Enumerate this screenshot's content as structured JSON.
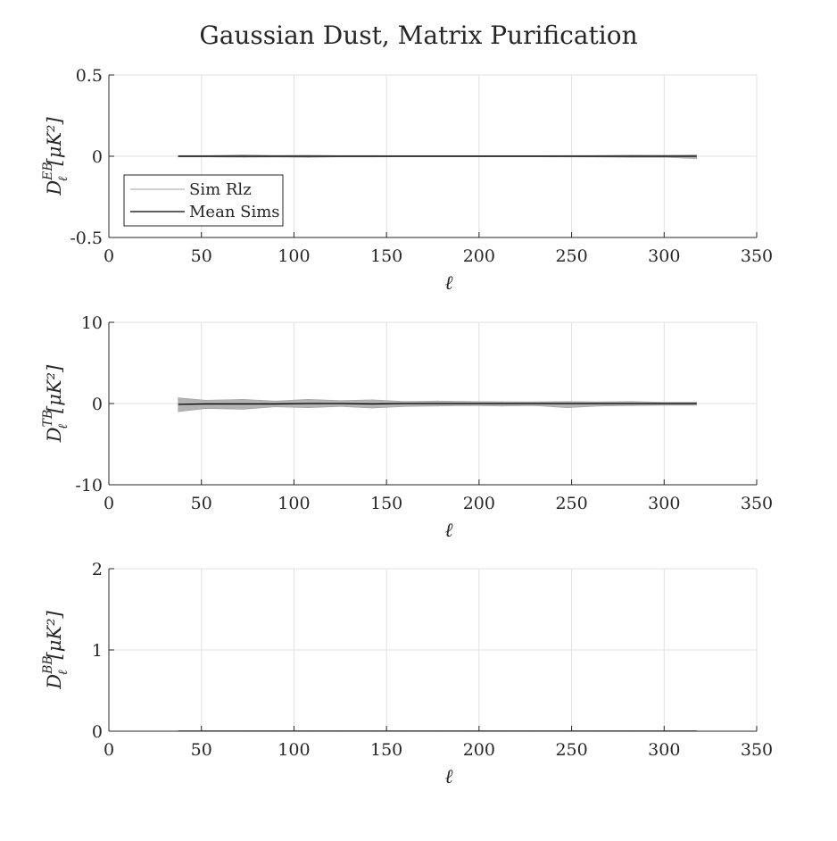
{
  "title": "Gaussian Dust, Matrix Purification",
  "legend": {
    "entries": [
      {
        "label": "Sim Rlz",
        "color": "#b3b3b3"
      },
      {
        "label": "Mean Sims",
        "color": "#000000"
      }
    ]
  },
  "colors": {
    "band_fill": "#b3b3b3",
    "sim_line": "#a6a6a6",
    "mean_line": "#000000",
    "grid": "#e1e1e1",
    "axis": "#262626"
  },
  "chart_data": [
    {
      "type": "line",
      "id": "EB",
      "ylabel": {
        "base": "D",
        "sub": "ℓ",
        "sup": "EB",
        "unit": "[μK²]"
      },
      "xlabel": "ℓ",
      "xlim": [
        0,
        350
      ],
      "ylim": [
        -0.5,
        0.5
      ],
      "xticks": [
        0,
        50,
        100,
        150,
        200,
        250,
        300,
        350
      ],
      "yticks": [
        -0.5,
        0,
        0.5
      ],
      "ytick_labels": [
        "-0.5",
        "0",
        "0.5"
      ],
      "grid": true,
      "legend_position": "lower-left",
      "x": [
        37.5,
        52.5,
        72.5,
        90,
        107.5,
        125,
        142.5,
        160,
        177.5,
        195,
        212.5,
        230,
        247.5,
        265,
        282.5,
        300,
        317.5
      ],
      "series": [
        {
          "name": "Sim Rlz",
          "upper": [
            0.004,
            0.004,
            0.008,
            0.005,
            0.006,
            0.004,
            0.004,
            0.003,
            0.003,
            0.003,
            0.003,
            0.003,
            0.004,
            0.005,
            0.007,
            0.006,
            0.008
          ],
          "lower": [
            -0.004,
            -0.004,
            -0.006,
            -0.005,
            -0.007,
            -0.004,
            -0.004,
            -0.003,
            -0.003,
            -0.003,
            -0.003,
            -0.003,
            -0.004,
            -0.005,
            -0.007,
            -0.006,
            -0.014
          ]
        },
        {
          "name": "Mean Sims",
          "values": [
            0,
            0,
            0,
            0,
            0,
            0,
            0,
            0,
            0,
            0,
            0,
            0,
            0,
            0,
            0,
            0,
            0
          ]
        }
      ]
    },
    {
      "type": "line",
      "id": "TB",
      "ylabel": {
        "base": "D",
        "sub": "ℓ",
        "sup": "TB",
        "unit": "[μK²]"
      },
      "xlabel": "ℓ",
      "xlim": [
        0,
        350
      ],
      "ylim": [
        -10,
        10
      ],
      "xticks": [
        0,
        50,
        100,
        150,
        200,
        250,
        300,
        350
      ],
      "yticks": [
        -10,
        0,
        10
      ],
      "ytick_labels": [
        "-10",
        "0",
        "10"
      ],
      "grid": true,
      "x": [
        37.5,
        52.5,
        72.5,
        90,
        107.5,
        125,
        142.5,
        160,
        177.5,
        195,
        212.5,
        230,
        247.5,
        265,
        282.5,
        300,
        317.5
      ],
      "series": [
        {
          "name": "Sim Rlz",
          "upper": [
            0.7,
            0.4,
            0.5,
            0.3,
            0.5,
            0.35,
            0.45,
            0.25,
            0.3,
            0.25,
            0.22,
            0.2,
            0.25,
            0.2,
            0.25,
            0.15,
            0.15
          ],
          "lower": [
            -1.0,
            -0.6,
            -0.7,
            -0.4,
            -0.5,
            -0.35,
            -0.55,
            -0.35,
            -0.3,
            -0.25,
            -0.3,
            -0.25,
            -0.5,
            -0.3,
            -0.25,
            -0.2,
            -0.2
          ]
        },
        {
          "name": "Mean Sims",
          "values": [
            -0.1,
            -0.05,
            -0.05,
            -0.05,
            0,
            0,
            -0.05,
            0,
            0,
            0,
            0,
            0,
            0,
            0,
            0,
            0,
            0
          ]
        }
      ]
    },
    {
      "type": "line",
      "id": "BB",
      "ylabel": {
        "base": "D",
        "sub": "ℓ",
        "sup": "BB",
        "unit": "[μK²]"
      },
      "xlabel": "ℓ",
      "xlim": [
        0,
        350
      ],
      "ylim": [
        0,
        2
      ],
      "xticks": [
        0,
        50,
        100,
        150,
        200,
        250,
        300,
        350
      ],
      "yticks": [
        0,
        1,
        2
      ],
      "ytick_labels": [
        "0",
        "1",
        "2"
      ],
      "grid": true,
      "x": [
        37.5,
        52.5,
        72.5,
        90,
        107.5,
        125,
        142.5,
        160,
        177.5,
        195,
        212.5,
        230,
        247.5,
        265,
        282.5,
        300,
        317.5
      ],
      "series": [
        {
          "name": "Sim Rlz",
          "upper": [
            0.002,
            0.002,
            0.002,
            0.002,
            0.002,
            0.002,
            0.002,
            0.002,
            0.002,
            0.002,
            0.002,
            0.002,
            0.002,
            0.002,
            0.002,
            0.002,
            0.002
          ],
          "lower": [
            0,
            0,
            0,
            0,
            0,
            0,
            0,
            0,
            0,
            0,
            0,
            0,
            0,
            0,
            0,
            0,
            0
          ]
        },
        {
          "name": "Mean Sims",
          "values": [
            0.001,
            0.001,
            0.001,
            0.001,
            0.001,
            0.001,
            0.001,
            0.001,
            0.001,
            0.001,
            0.001,
            0.001,
            0.001,
            0.001,
            0.001,
            0.001,
            0.001
          ]
        }
      ]
    }
  ]
}
